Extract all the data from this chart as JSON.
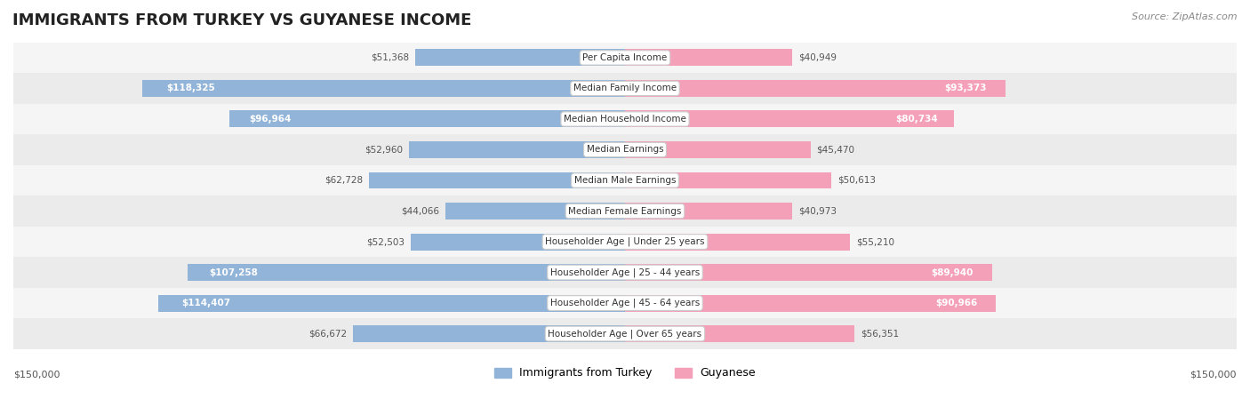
{
  "title": "IMMIGRANTS FROM TURKEY VS GUYANESE INCOME",
  "source": "Source: ZipAtlas.com",
  "categories": [
    "Per Capita Income",
    "Median Family Income",
    "Median Household Income",
    "Median Earnings",
    "Median Male Earnings",
    "Median Female Earnings",
    "Householder Age | Under 25 years",
    "Householder Age | 25 - 44 years",
    "Householder Age | 45 - 64 years",
    "Householder Age | Over 65 years"
  ],
  "turkey_values": [
    51368,
    118325,
    96964,
    52960,
    62728,
    44066,
    52503,
    107258,
    114407,
    66672
  ],
  "guyanese_values": [
    40949,
    93373,
    80734,
    45470,
    50613,
    40973,
    55210,
    89940,
    90966,
    56351
  ],
  "turkey_labels": [
    "$51,368",
    "$118,325",
    "$96,964",
    "$52,960",
    "$62,728",
    "$44,066",
    "$52,503",
    "$107,258",
    "$114,407",
    "$66,672"
  ],
  "guyanese_labels": [
    "$40,949",
    "$93,373",
    "$80,734",
    "$45,470",
    "$50,613",
    "$40,973",
    "$55,210",
    "$89,940",
    "$90,966",
    "$56,351"
  ],
  "turkey_color": "#92b4d8",
  "turkey_color_dark": "#6699cc",
  "guyanese_color": "#f4a0b8",
  "guyanese_color_dark": "#e8799a",
  "max_value": 150000,
  "bg_color": "#ffffff",
  "row_bg_light": "#f5f5f5",
  "row_bg_dark": "#ebebeb",
  "label_inside_threshold": 80000,
  "xlabel_left": "$150,000",
  "xlabel_right": "$150,000"
}
